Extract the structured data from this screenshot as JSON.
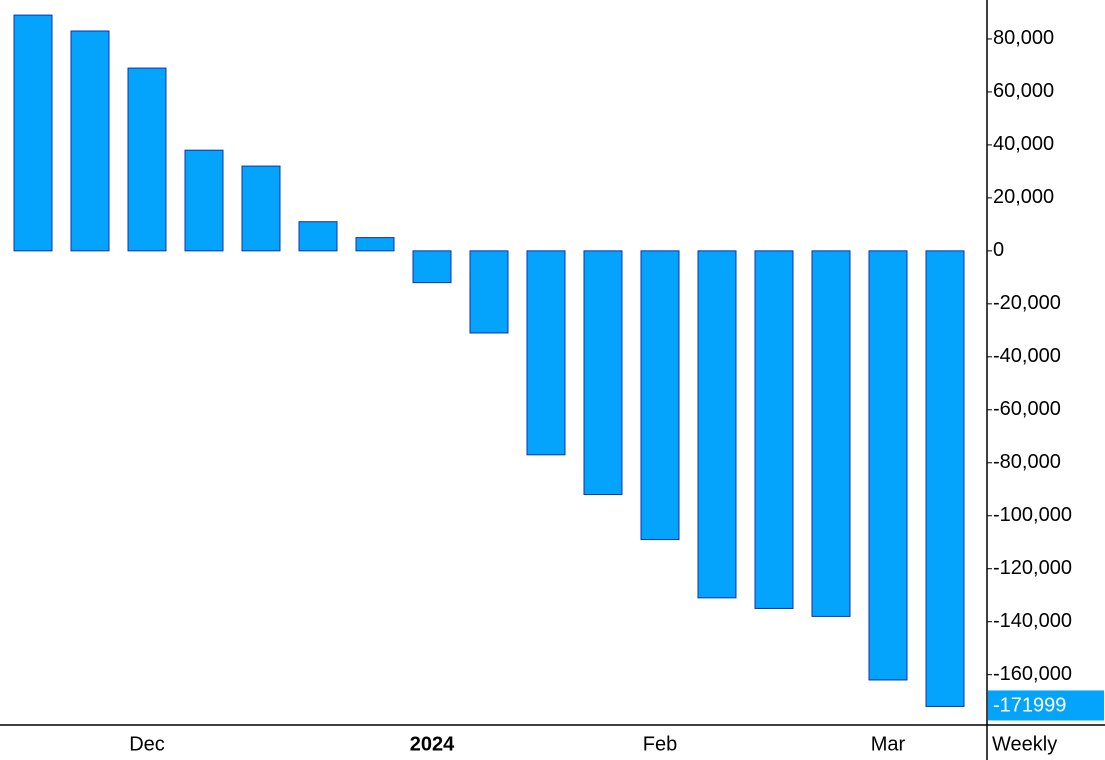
{
  "chart_data": {
    "type": "bar",
    "categories": [
      null,
      null,
      "Dec",
      null,
      null,
      null,
      null,
      "2024",
      null,
      null,
      null,
      "Feb",
      null,
      null,
      null,
      "Mar",
      null
    ],
    "values": [
      89000,
      83000,
      69000,
      38000,
      32000,
      11000,
      5000,
      -12000,
      -31000,
      -77000,
      -92000,
      -109000,
      -131000,
      -135000,
      -138000,
      -162000,
      -171999
    ],
    "color": "#04a4fc",
    "edge_color": "#1030b0",
    "x_label": "Weekly",
    "ylim": [
      -179000,
      94700
    ],
    "yticks": [
      {
        "value": 80000,
        "label": "80,000"
      },
      {
        "value": 60000,
        "label": "60,000"
      },
      {
        "value": 40000,
        "label": "40,000"
      },
      {
        "value": 20000,
        "label": "20,000"
      },
      0,
      {
        "value": -20000,
        "label": "-20,000"
      },
      {
        "value": -40000,
        "label": "-40,000"
      },
      {
        "value": -60000,
        "label": "-60,000"
      },
      {
        "value": -80000,
        "label": "-80,000"
      },
      {
        "value": -100000,
        "label": "-100,000"
      },
      {
        "value": -120000,
        "label": "-120,000"
      },
      {
        "value": -140000,
        "label": "-140,000"
      },
      {
        "value": -160000,
        "label": "-160,000"
      }
    ],
    "grid": false
  }
}
